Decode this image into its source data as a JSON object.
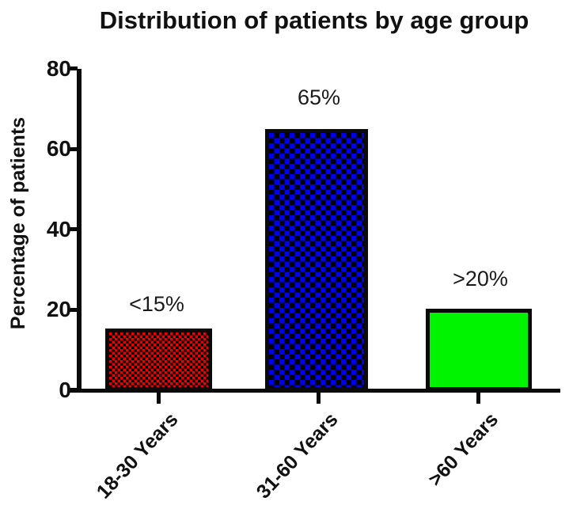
{
  "title": "Distribution of patients by age group",
  "chart_data": {
    "type": "bar",
    "title": "Distribution of patients by age group",
    "xlabel": "",
    "ylabel": "Percentage of patients",
    "categories": [
      "18-30 Years",
      "31-60 Years",
      ">60 Years"
    ],
    "values": [
      15,
      65,
      20
    ],
    "bar_value_labels": [
      "<15%",
      "65%",
      ">20%"
    ],
    "bar_fill_colors": [
      "#ee0000",
      "#0000ee",
      "#00f400"
    ],
    "bar_fill_patterns": [
      "checkerboard-fine-red-black",
      "checkerboard-coarse-blue-black",
      "solid-green"
    ],
    "bar_border_color": "#0a0a0a",
    "ylim": [
      0,
      80
    ],
    "yticks": [
      0,
      20,
      40,
      60,
      80
    ],
    "ytick_labels": [
      "0",
      "20",
      "40",
      "60",
      "80"
    ],
    "grid": false,
    "legend_position": "none",
    "x_label_rotation_deg": -47
  }
}
